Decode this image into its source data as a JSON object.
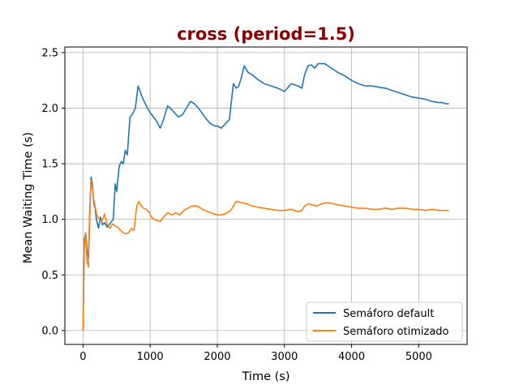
{
  "chart_data": {
    "type": "line",
    "title": "cross (period=1.5)",
    "title_color": "#8b0000",
    "xlabel": "Time (s)",
    "ylabel": "Mean Waiting Time (s)",
    "xlim": [
      -270,
      5720
    ],
    "ylim": [
      -0.125,
      2.55
    ],
    "xticks": [
      0,
      1000,
      2000,
      3000,
      4000,
      5000
    ],
    "xtick_labels": [
      "0",
      "1000",
      "2000",
      "3000",
      "4000",
      "5000"
    ],
    "yticks": [
      0.0,
      0.5,
      1.0,
      1.5,
      2.0,
      2.5
    ],
    "ytick_labels": [
      "0.0",
      "0.5",
      "1.0",
      "1.5",
      "2.0",
      "2.5"
    ],
    "grid": true,
    "legend_position": "lower-right",
    "series": [
      {
        "name": "Semáforo default",
        "color": "#1f77b4",
        "x": [
          0,
          20,
          40,
          60,
          80,
          100,
          120,
          140,
          160,
          180,
          200,
          230,
          260,
          290,
          320,
          360,
          400,
          450,
          480,
          500,
          540,
          570,
          600,
          630,
          660,
          700,
          740,
          780,
          820,
          850,
          880,
          920,
          960,
          1000,
          1050,
          1100,
          1150,
          1200,
          1260,
          1300,
          1360,
          1420,
          1480,
          1540,
          1600,
          1660,
          1720,
          1780,
          1840,
          1900,
          1960,
          2000,
          2060,
          2120,
          2180,
          2240,
          2280,
          2320,
          2360,
          2400,
          2460,
          2520,
          2600,
          2700,
          2800,
          2900,
          3000,
          3100,
          3200,
          3260,
          3300,
          3350,
          3400,
          3450,
          3500,
          3550,
          3600,
          3650,
          3700,
          3800,
          3900,
          4000,
          4100,
          4200,
          4300,
          4400,
          4500,
          4600,
          4700,
          4800,
          4900,
          5000,
          5100,
          5200,
          5300,
          5350,
          5400,
          5450
        ],
        "y": [
          0.0,
          0.82,
          0.88,
          0.72,
          0.65,
          1.05,
          1.38,
          1.32,
          1.15,
          1.1,
          1.0,
          0.92,
          1.02,
          0.95,
          0.97,
          0.93,
          0.96,
          1.0,
          1.32,
          1.25,
          1.48,
          1.52,
          1.5,
          1.62,
          1.58,
          1.92,
          1.95,
          2.0,
          2.2,
          2.15,
          2.1,
          2.05,
          2.0,
          1.96,
          1.92,
          1.88,
          1.82,
          1.9,
          2.02,
          2.0,
          1.96,
          1.92,
          1.94,
          2.0,
          2.06,
          2.04,
          2.0,
          1.95,
          1.9,
          1.86,
          1.84,
          1.84,
          1.82,
          1.86,
          1.9,
          2.22,
          2.18,
          2.2,
          2.28,
          2.38,
          2.32,
          2.3,
          2.26,
          2.22,
          2.2,
          2.18,
          2.15,
          2.22,
          2.2,
          2.18,
          2.3,
          2.38,
          2.39,
          2.36,
          2.4,
          2.4,
          2.4,
          2.38,
          2.36,
          2.32,
          2.29,
          2.25,
          2.22,
          2.2,
          2.2,
          2.19,
          2.18,
          2.16,
          2.14,
          2.12,
          2.1,
          2.09,
          2.08,
          2.06,
          2.05,
          2.05,
          2.04,
          2.04
        ]
      },
      {
        "name": "Semáforo otimizado",
        "color": "#ff7f0e",
        "x": [
          0,
          20,
          40,
          60,
          80,
          100,
          120,
          140,
          160,
          180,
          200,
          240,
          280,
          320,
          360,
          400,
          440,
          480,
          520,
          560,
          600,
          640,
          680,
          720,
          760,
          800,
          830,
          860,
          900,
          940,
          980,
          1020,
          1060,
          1100,
          1150,
          1200,
          1260,
          1320,
          1380,
          1440,
          1500,
          1560,
          1620,
          1700,
          1780,
          1860,
          1940,
          2000,
          2060,
          2120,
          2200,
          2280,
          2360,
          2440,
          2520,
          2600,
          2700,
          2800,
          2900,
          3000,
          3100,
          3200,
          3260,
          3300,
          3360,
          3420,
          3480,
          3560,
          3640,
          3720,
          3800,
          3900,
          4000,
          4100,
          4200,
          4300,
          4400,
          4500,
          4600,
          4700,
          4800,
          4900,
          5000,
          5100,
          5200,
          5300,
          5400,
          5450
        ],
        "y": [
          0.0,
          0.75,
          0.88,
          0.62,
          0.57,
          1.0,
          1.35,
          1.28,
          1.18,
          1.12,
          1.05,
          1.0,
          0.98,
          1.05,
          0.95,
          0.92,
          0.96,
          0.94,
          0.93,
          0.9,
          0.88,
          0.87,
          0.88,
          0.92,
          0.9,
          1.12,
          1.16,
          1.13,
          1.1,
          1.09,
          1.07,
          1.02,
          1.0,
          0.99,
          0.98,
          1.02,
          1.06,
          1.04,
          1.06,
          1.04,
          1.08,
          1.1,
          1.12,
          1.12,
          1.09,
          1.07,
          1.05,
          1.04,
          1.04,
          1.05,
          1.08,
          1.16,
          1.15,
          1.14,
          1.12,
          1.11,
          1.1,
          1.09,
          1.08,
          1.08,
          1.09,
          1.07,
          1.08,
          1.12,
          1.14,
          1.13,
          1.12,
          1.14,
          1.15,
          1.14,
          1.13,
          1.12,
          1.11,
          1.1,
          1.1,
          1.09,
          1.09,
          1.1,
          1.09,
          1.1,
          1.1,
          1.09,
          1.09,
          1.08,
          1.09,
          1.08,
          1.08,
          1.08
        ]
      }
    ]
  }
}
